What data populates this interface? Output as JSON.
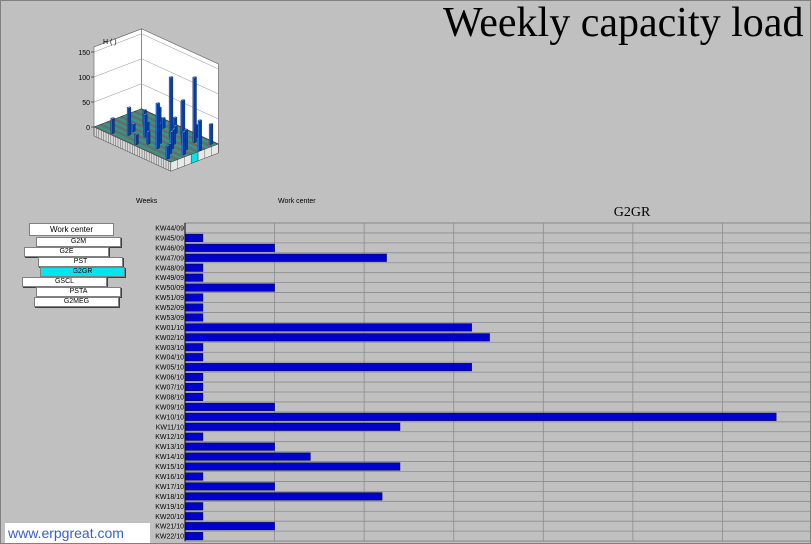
{
  "page": {
    "title": "Weekly capacity load",
    "watermark": "www.erpgreat.com"
  },
  "chart3d": {
    "y_label": "H ( )",
    "y_ticks": [
      "150",
      "100",
      "50",
      "0"
    ],
    "x_label": "Weeks",
    "z_label": "Work center",
    "colors": {
      "bar": "#1e6fe8",
      "floor": "#2e9e8a",
      "selected": "#00e5ee"
    }
  },
  "work_centers": {
    "header": "Work center",
    "items": [
      "G2M",
      "G2E",
      "PST",
      "G2GR",
      "GSCL",
      "PSTA",
      "G2MEG"
    ],
    "selected": "G2GR"
  },
  "chart_data": {
    "type": "bar",
    "orientation": "horizontal",
    "title": "G2GR",
    "categories": [
      "KW44/09",
      "KW45/09",
      "KW46/09",
      "KW47/09",
      "KW48/09",
      "KW49/09",
      "KW50/09",
      "KW51/09",
      "KW52/09",
      "KW53/09",
      "KW01/10",
      "KW02/10",
      "KW03/10",
      "KW04/10",
      "KW05/10",
      "KW06/10",
      "KW07/10",
      "KW08/10",
      "KW09/10",
      "KW10/10",
      "KW11/10",
      "KW12/10",
      "KW13/10",
      "KW14/10",
      "KW15/10",
      "KW16/10",
      "KW17/10",
      "KW18/10",
      "KW19/10",
      "KW20/10",
      "KW21/10",
      "KW22/10"
    ],
    "values": [
      0,
      8,
      40,
      90,
      8,
      8,
      40,
      8,
      8,
      8,
      128,
      136,
      8,
      8,
      128,
      8,
      8,
      8,
      40,
      264,
      96,
      8,
      40,
      56,
      96,
      8,
      40,
      88,
      8,
      8,
      40,
      8
    ],
    "xlim": [
      0,
      280
    ],
    "grid": true,
    "bar_color": "#0000cc"
  }
}
